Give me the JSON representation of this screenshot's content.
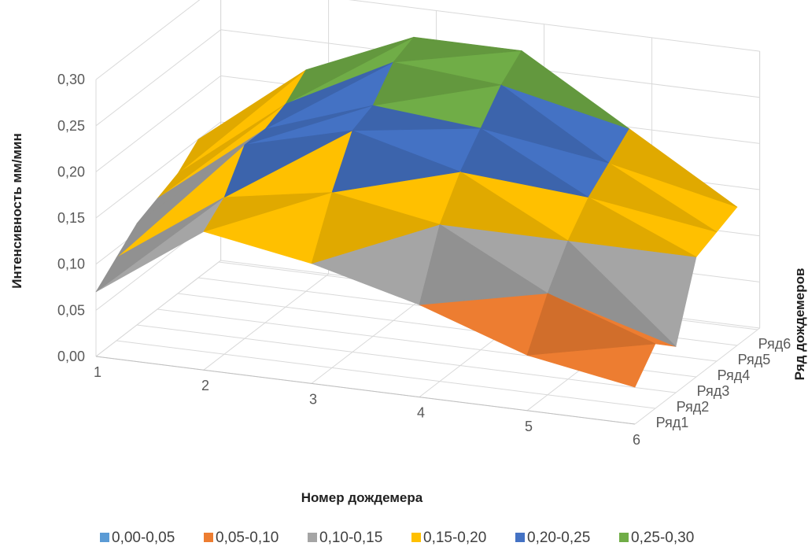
{
  "chart_data": {
    "type": "surface",
    "title": "",
    "xlabel": "Номер дождемера",
    "ylabel": "Интенсивность мм/мин",
    "zlabel": "Ряд дождемеров",
    "x_categories": [
      "1",
      "2",
      "3",
      "4",
      "5",
      "6"
    ],
    "y_ticks": [
      "0,00",
      "0,05",
      "0,10",
      "0,15",
      "0,20",
      "0,25",
      "0,30"
    ],
    "ylim": [
      0,
      0.3
    ],
    "legend_position": "bottom",
    "series": [
      {
        "name": "Ряд1",
        "values": [
          0.07,
          0.15,
          0.13,
          0.1,
          0.06,
          0.04
        ]
      },
      {
        "name": "Ряд2",
        "values": [
          0.09,
          0.17,
          0.19,
          0.17,
          0.11,
          0.07
        ]
      },
      {
        "name": "Ряд3",
        "values": [
          0.11,
          0.21,
          0.24,
          0.21,
          0.15,
          0.05
        ]
      },
      {
        "name": "Ряд4",
        "values": [
          0.12,
          0.21,
          0.25,
          0.24,
          0.18,
          0.13
        ]
      },
      {
        "name": "Ряд5",
        "values": [
          0.13,
          0.22,
          0.28,
          0.27,
          0.2,
          0.14
        ]
      },
      {
        "name": "Ряд6",
        "values": [
          0.15,
          0.24,
          0.29,
          0.29,
          0.22,
          0.15
        ]
      }
    ],
    "bands": [
      {
        "label": "0,00-0,05",
        "min": 0.0,
        "max": 0.05,
        "color": "#5b9bd5"
      },
      {
        "label": "0,05-0,10",
        "min": 0.05,
        "max": 0.1,
        "color": "#ed7d31"
      },
      {
        "label": "0,10-0,15",
        "min": 0.1,
        "max": 0.15,
        "color": "#a5a5a5"
      },
      {
        "label": "0,15-0,20",
        "min": 0.15,
        "max": 0.2,
        "color": "#ffc000"
      },
      {
        "label": "0,20-0,25",
        "min": 0.2,
        "max": 0.25,
        "color": "#4472c4"
      },
      {
        "label": "0,25-0,30",
        "min": 0.25,
        "max": 0.3,
        "color": "#70ad47"
      }
    ]
  }
}
